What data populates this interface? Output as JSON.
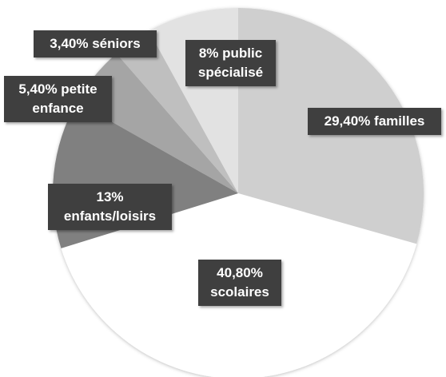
{
  "chart_data": {
    "type": "pie",
    "categories": [
      "familles",
      "scolaires",
      "enfants/loisirs",
      "petite enfance",
      "séniors",
      "public spécialisé"
    ],
    "values": [
      29.4,
      40.8,
      13,
      5.4,
      3.4,
      8
    ],
    "value_labels": [
      "29,40%",
      "40,80%",
      "13%",
      "5,40%",
      "3,40%",
      "8%"
    ],
    "colors": [
      "#cfcfcf",
      "#ffffff",
      "#808080",
      "#a5a5a5",
      "#bfbfbf",
      "#e2e2e2"
    ]
  }
}
